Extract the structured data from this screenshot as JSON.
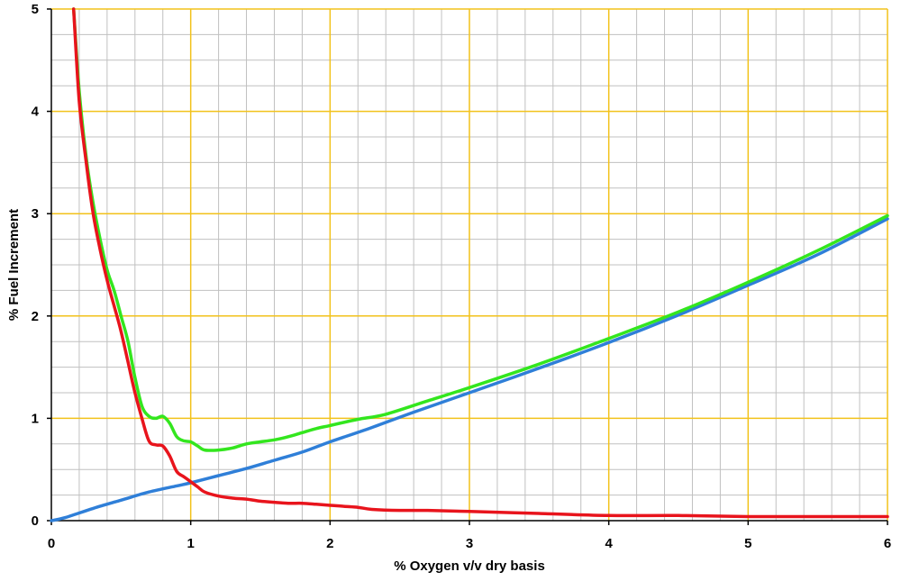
{
  "chart_data": {
    "type": "line",
    "title": "",
    "xlabel": "% Oxygen v/v dry basis",
    "ylabel": "% Fuel Increment",
    "xlim": [
      0,
      6
    ],
    "ylim": [
      0,
      5
    ],
    "x_ticks": [
      "0",
      "1",
      "2",
      "3",
      "4",
      "5",
      "6"
    ],
    "y_ticks": [
      "0",
      "1",
      "2",
      "3",
      "4",
      "5"
    ],
    "grid": true,
    "minor_grid_x_step": 0.2,
    "minor_grid_y_step": 0.25,
    "colors": {
      "major_grid": "#f2c21a",
      "minor_grid": "#c0c0c0",
      "red_series": "#e8141c",
      "green_series": "#33e61e",
      "blue_series": "#2f7fd8"
    },
    "series": [
      {
        "color": "red",
        "x": [
          0.16,
          0.2,
          0.25,
          0.3,
          0.35,
          0.4,
          0.45,
          0.5,
          0.55,
          0.6,
          0.65,
          0.7,
          0.75,
          0.8,
          0.85,
          0.9,
          0.95,
          1.0,
          1.05,
          1.1,
          1.2,
          1.3,
          1.4,
          1.5,
          1.6,
          1.7,
          1.8,
          1.9,
          2.0,
          2.1,
          2.2,
          2.3,
          2.5,
          2.7,
          3.0,
          3.5,
          4.0,
          4.5,
          5.0,
          5.5,
          6.0
        ],
        "y": [
          5.0,
          4.1,
          3.5,
          3.0,
          2.65,
          2.35,
          2.1,
          1.85,
          1.55,
          1.25,
          1.0,
          0.78,
          0.74,
          0.73,
          0.63,
          0.48,
          0.43,
          0.38,
          0.33,
          0.28,
          0.24,
          0.22,
          0.21,
          0.19,
          0.18,
          0.17,
          0.17,
          0.16,
          0.15,
          0.14,
          0.13,
          0.11,
          0.1,
          0.1,
          0.09,
          0.07,
          0.05,
          0.05,
          0.04,
          0.04,
          0.04
        ]
      },
      {
        "color": "green",
        "x": [
          0.16,
          0.2,
          0.25,
          0.3,
          0.35,
          0.4,
          0.45,
          0.5,
          0.55,
          0.6,
          0.65,
          0.7,
          0.75,
          0.8,
          0.85,
          0.9,
          0.95,
          1.0,
          1.05,
          1.1,
          1.2,
          1.3,
          1.4,
          1.5,
          1.6,
          1.7,
          1.8,
          1.9,
          2.0,
          2.2,
          2.4,
          2.7,
          3.0,
          3.5,
          4.0,
          4.5,
          5.0,
          5.5,
          6.0
        ],
        "y": [
          5.0,
          4.2,
          3.55,
          3.1,
          2.75,
          2.45,
          2.25,
          2.0,
          1.75,
          1.4,
          1.12,
          1.02,
          1.0,
          1.02,
          0.95,
          0.82,
          0.78,
          0.77,
          0.73,
          0.69,
          0.69,
          0.71,
          0.75,
          0.77,
          0.79,
          0.82,
          0.86,
          0.9,
          0.93,
          0.99,
          1.04,
          1.17,
          1.3,
          1.53,
          1.78,
          2.04,
          2.33,
          2.64,
          2.98
        ]
      },
      {
        "color": "blue",
        "x": [
          0.0,
          0.1,
          0.3,
          0.5,
          0.7,
          0.9,
          1.0,
          1.2,
          1.4,
          1.6,
          1.8,
          2.0,
          2.3,
          2.6,
          3.0,
          3.5,
          4.0,
          4.5,
          5.0,
          5.5,
          6.0
        ],
        "y": [
          0.0,
          0.03,
          0.12,
          0.2,
          0.28,
          0.34,
          0.37,
          0.44,
          0.51,
          0.59,
          0.67,
          0.77,
          0.91,
          1.06,
          1.25,
          1.49,
          1.74,
          2.01,
          2.3,
          2.6,
          2.95
        ]
      }
    ]
  }
}
